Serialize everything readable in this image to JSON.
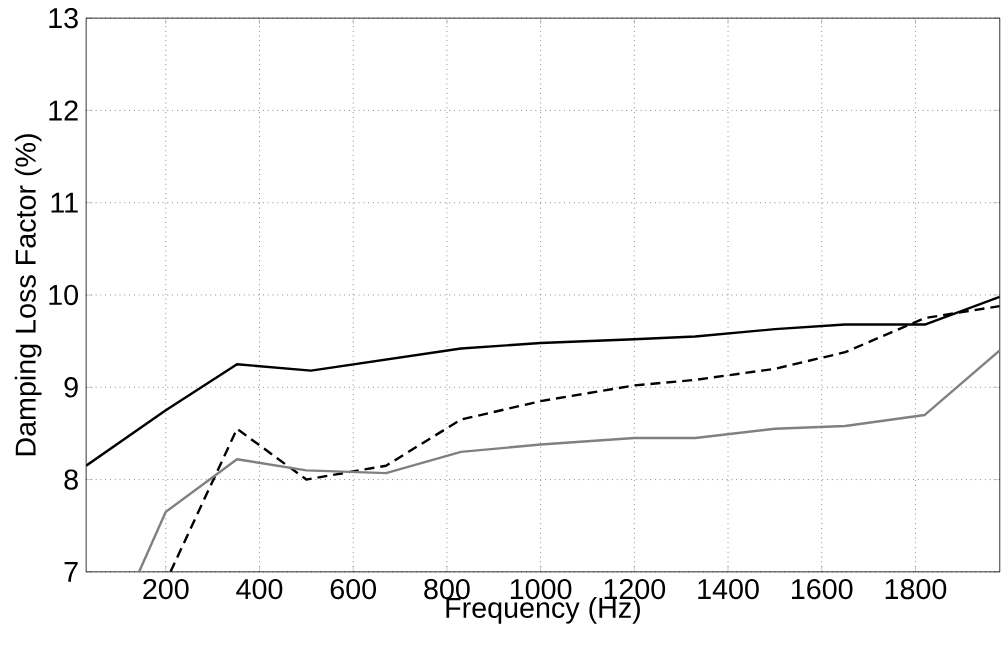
{
  "chart_data": {
    "type": "line",
    "xlabel": "Frequency (Hz)",
    "ylabel": "Damping Loss Factor (%)",
    "xlim": [
      30,
      1980
    ],
    "ylim": [
      7,
      13
    ],
    "xticks": [
      200,
      400,
      600,
      800,
      1000,
      1200,
      1400,
      1600,
      1800
    ],
    "yticks": [
      7,
      8,
      9,
      10,
      11,
      12,
      13
    ],
    "grid": true,
    "series": [
      {
        "color": "#000000",
        "line_style": "solid",
        "x": [
          30,
          200,
          352,
          510,
          830,
          1000,
          1200,
          1330,
          1500,
          1650,
          1820,
          1980
        ],
        "values": [
          8.15,
          8.75,
          9.25,
          9.18,
          9.42,
          9.48,
          9.52,
          9.55,
          9.63,
          9.68,
          9.68,
          9.98
        ]
      },
      {
        "color": "#000000",
        "line_style": "dashed",
        "x": [
          210,
          352,
          500,
          670,
          830,
          1000,
          1200,
          1330,
          1500,
          1650,
          1820,
          1980
        ],
        "values": [
          7.0,
          8.55,
          8.0,
          8.15,
          8.65,
          8.85,
          9.02,
          9.08,
          9.2,
          9.38,
          9.75,
          9.88
        ]
      },
      {
        "color": "#808080",
        "line_style": "solid",
        "x": [
          143,
          200,
          352,
          500,
          670,
          830,
          1000,
          1200,
          1330,
          1500,
          1650,
          1820,
          1980
        ],
        "values": [
          7.0,
          7.65,
          8.22,
          8.1,
          8.07,
          8.3,
          8.38,
          8.45,
          8.45,
          8.55,
          8.58,
          8.7,
          9.4
        ]
      }
    ]
  }
}
